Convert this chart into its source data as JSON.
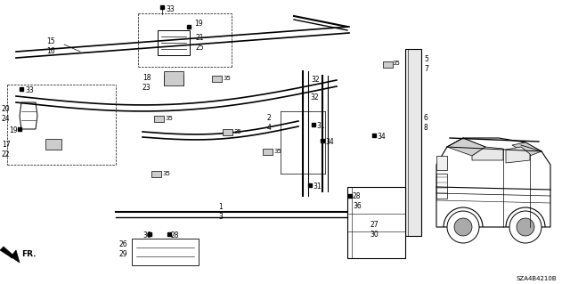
{
  "bg_color": "#ffffff",
  "watermark": "SZA4B4210B",
  "fig_w": 6.4,
  "fig_h": 3.19,
  "dpi": 100
}
